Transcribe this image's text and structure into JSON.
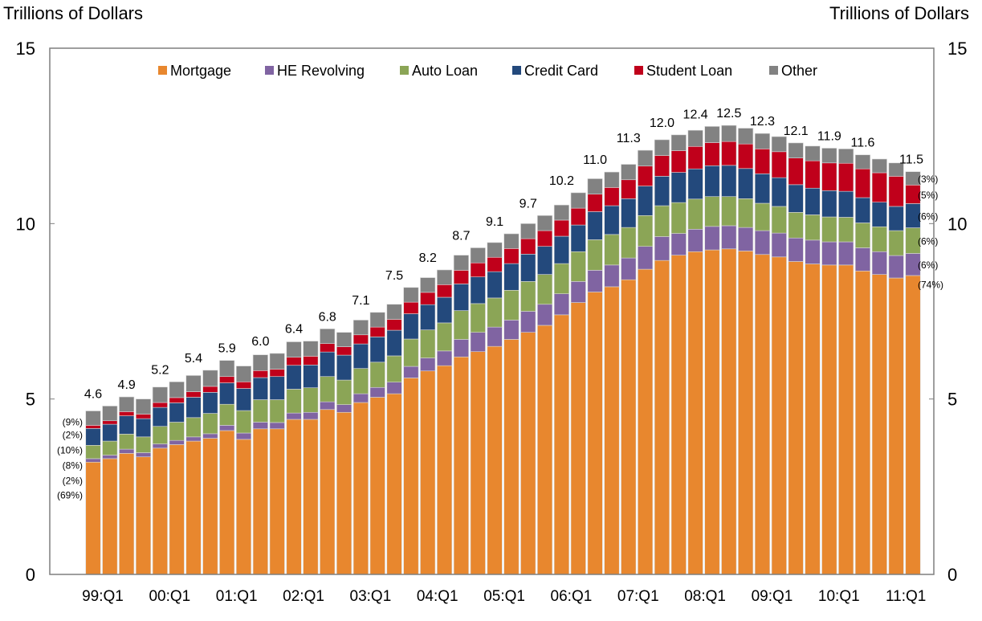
{
  "chart_data": {
    "type": "bar",
    "stacked": true,
    "title": "",
    "ylabel_left": "Trillions of Dollars",
    "ylabel_right": "Trillions of Dollars",
    "xlabel": "",
    "ylim": [
      0,
      15
    ],
    "yticks": [
      0,
      5,
      10,
      15
    ],
    "grid": false,
    "legend_position": "top-center",
    "x_tick_labels": [
      {
        "index": 0,
        "label": "99:Q1"
      },
      {
        "index": 4,
        "label": "00:Q1"
      },
      {
        "index": 8,
        "label": "01:Q1"
      },
      {
        "index": 12,
        "label": "02:Q1"
      },
      {
        "index": 16,
        "label": "03:Q1"
      },
      {
        "index": 20,
        "label": "04:Q1"
      },
      {
        "index": 24,
        "label": "05:Q1"
      },
      {
        "index": 28,
        "label": "06:Q1"
      },
      {
        "index": 32,
        "label": "07:Q1"
      },
      {
        "index": 36,
        "label": "08:Q1"
      },
      {
        "index": 40,
        "label": "09:Q1"
      },
      {
        "index": 44,
        "label": "10:Q1"
      },
      {
        "index": 48,
        "label": "11:Q1"
      }
    ],
    "categories": [
      "99:Q1",
      "99:Q2",
      "99:Q3",
      "99:Q4",
      "00:Q1",
      "00:Q2",
      "00:Q3",
      "00:Q4",
      "01:Q1",
      "01:Q2",
      "01:Q3",
      "01:Q4",
      "02:Q1",
      "02:Q2",
      "02:Q3",
      "02:Q4",
      "03:Q1",
      "03:Q2",
      "03:Q3",
      "03:Q4",
      "04:Q1",
      "04:Q2",
      "04:Q3",
      "04:Q4",
      "05:Q1",
      "05:Q2",
      "05:Q3",
      "05:Q4",
      "06:Q1",
      "06:Q2",
      "06:Q3",
      "06:Q4",
      "07:Q1",
      "07:Q2",
      "07:Q3",
      "07:Q4",
      "08:Q1",
      "08:Q2",
      "08:Q3",
      "08:Q4",
      "09:Q1",
      "09:Q2",
      "09:Q3",
      "09:Q4",
      "10:Q1",
      "10:Q2",
      "10:Q3",
      "10:Q4",
      "11:Q1",
      "11:Q2"
    ],
    "series": [
      {
        "name": "Mortgage",
        "color": "#E8872E",
        "values": [
          3.2,
          3.3,
          3.45,
          3.35,
          3.6,
          3.7,
          3.8,
          3.88,
          4.1,
          3.85,
          4.15,
          4.15,
          4.42,
          4.42,
          4.7,
          4.62,
          4.9,
          5.05,
          5.15,
          5.6,
          5.8,
          5.95,
          6.2,
          6.35,
          6.5,
          6.7,
          6.9,
          7.1,
          7.4,
          7.75,
          8.05,
          8.2,
          8.4,
          8.7,
          8.95,
          9.1,
          9.2,
          9.25,
          9.28,
          9.22,
          9.12,
          9.05,
          8.92,
          8.85,
          8.82,
          8.82,
          8.65,
          8.55,
          8.45,
          8.52
        ]
      },
      {
        "name": "HE Revolving",
        "color": "#8064A2",
        "values": [
          0.1,
          0.1,
          0.12,
          0.12,
          0.12,
          0.12,
          0.12,
          0.13,
          0.15,
          0.18,
          0.19,
          0.18,
          0.18,
          0.2,
          0.22,
          0.22,
          0.25,
          0.28,
          0.33,
          0.33,
          0.37,
          0.42,
          0.5,
          0.55,
          0.55,
          0.55,
          0.6,
          0.6,
          0.6,
          0.6,
          0.62,
          0.62,
          0.62,
          0.65,
          0.68,
          0.62,
          0.64,
          0.67,
          0.66,
          0.67,
          0.68,
          0.68,
          0.67,
          0.68,
          0.66,
          0.66,
          0.66,
          0.65,
          0.64,
          0.63
        ]
      },
      {
        "name": "Auto Loan",
        "color": "#8BA556",
        "values": [
          0.38,
          0.4,
          0.43,
          0.45,
          0.5,
          0.52,
          0.55,
          0.58,
          0.6,
          0.64,
          0.64,
          0.65,
          0.68,
          0.7,
          0.72,
          0.7,
          0.72,
          0.72,
          0.75,
          0.78,
          0.8,
          0.8,
          0.82,
          0.82,
          0.83,
          0.85,
          0.85,
          0.85,
          0.86,
          0.85,
          0.87,
          0.87,
          0.87,
          0.88,
          0.88,
          0.88,
          0.86,
          0.85,
          0.83,
          0.82,
          0.78,
          0.76,
          0.73,
          0.72,
          0.71,
          0.7,
          0.71,
          0.71,
          0.71,
          0.73
        ]
      },
      {
        "name": "Credit Card",
        "color": "#23497C",
        "values": [
          0.48,
          0.48,
          0.52,
          0.52,
          0.54,
          0.55,
          0.58,
          0.6,
          0.61,
          0.63,
          0.63,
          0.66,
          0.68,
          0.65,
          0.7,
          0.71,
          0.7,
          0.72,
          0.73,
          0.72,
          0.72,
          0.73,
          0.76,
          0.76,
          0.75,
          0.76,
          0.78,
          0.8,
          0.78,
          0.76,
          0.8,
          0.82,
          0.82,
          0.84,
          0.84,
          0.86,
          0.86,
          0.88,
          0.89,
          0.86,
          0.84,
          0.82,
          0.79,
          0.76,
          0.75,
          0.74,
          0.72,
          0.7,
          0.69,
          0.69
        ]
      },
      {
        "name": "Student Loan",
        "color": "#C0001B",
        "values": [
          0.09,
          0.1,
          0.12,
          0.13,
          0.14,
          0.15,
          0.16,
          0.17,
          0.18,
          0.19,
          0.2,
          0.21,
          0.23,
          0.25,
          0.24,
          0.24,
          0.26,
          0.28,
          0.31,
          0.33,
          0.35,
          0.36,
          0.39,
          0.4,
          0.41,
          0.43,
          0.44,
          0.45,
          0.46,
          0.48,
          0.5,
          0.52,
          0.54,
          0.57,
          0.59,
          0.62,
          0.64,
          0.66,
          0.68,
          0.7,
          0.71,
          0.74,
          0.76,
          0.78,
          0.79,
          0.8,
          0.82,
          0.84,
          0.86,
          0.53
        ]
      },
      {
        "name": "Other",
        "color": "#828282",
        "values": [
          0.41,
          0.42,
          0.42,
          0.43,
          0.44,
          0.45,
          0.46,
          0.46,
          0.46,
          0.45,
          0.45,
          0.45,
          0.44,
          0.43,
          0.42,
          0.41,
          0.42,
          0.42,
          0.43,
          0.42,
          0.42,
          0.42,
          0.43,
          0.43,
          0.42,
          0.42,
          0.43,
          0.43,
          0.43,
          0.44,
          0.44,
          0.44,
          0.44,
          0.45,
          0.45,
          0.45,
          0.46,
          0.46,
          0.46,
          0.45,
          0.44,
          0.43,
          0.43,
          0.42,
          0.42,
          0.41,
          0.4,
          0.39,
          0.38,
          0.38
        ]
      }
    ],
    "total_labels": [
      {
        "index": 0,
        "label": "4.6"
      },
      {
        "index": 2,
        "label": "4.9"
      },
      {
        "index": 4,
        "label": "5.2"
      },
      {
        "index": 6,
        "label": "5.4"
      },
      {
        "index": 8,
        "label": "5.9"
      },
      {
        "index": 10,
        "label": "6.0"
      },
      {
        "index": 12,
        "label": "6.4"
      },
      {
        "index": 14,
        "label": "6.8"
      },
      {
        "index": 16,
        "label": "7.1"
      },
      {
        "index": 18,
        "label": "7.5"
      },
      {
        "index": 20,
        "label": "8.2"
      },
      {
        "index": 22,
        "label": "8.7"
      },
      {
        "index": 24,
        "label": "9.1"
      },
      {
        "index": 26,
        "label": "9.7"
      },
      {
        "index": 28,
        "label": "10.2"
      },
      {
        "index": 30,
        "label": "11.0"
      },
      {
        "index": 32,
        "label": "11.3"
      },
      {
        "index": 34,
        "label": "12.0"
      },
      {
        "index": 36,
        "label": "12.4"
      },
      {
        "index": 38,
        "label": "12.5"
      },
      {
        "index": 40,
        "label": "12.3"
      },
      {
        "index": 42,
        "label": "12.1"
      },
      {
        "index": 44,
        "label": "11.9"
      },
      {
        "index": 46,
        "label": "11.6"
      },
      {
        "index": 48,
        "label": "11.5"
      }
    ],
    "first_bar_shares": [
      "(69%)",
      "(2%)",
      "(8%)",
      "(10%)",
      "(2%)",
      "(9%)"
    ],
    "last_bar_shares": [
      "(74%)",
      "(6%)",
      "(6%)",
      "(6%)",
      "(5%)",
      "(3%)"
    ]
  }
}
